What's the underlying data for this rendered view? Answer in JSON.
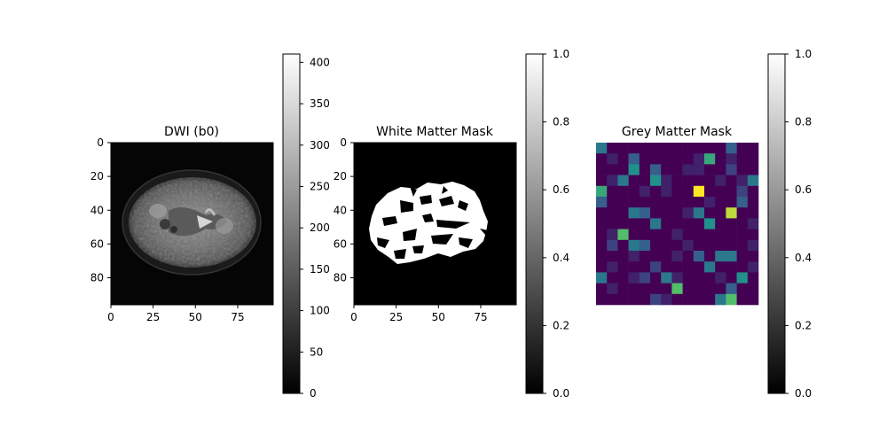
{
  "chart_data": [
    {
      "type": "heatmap",
      "title": "DWI (b0)",
      "xlabel": "",
      "ylabel": "",
      "x_range": [
        0,
        96
      ],
      "y_range": [
        0,
        96
      ],
      "x_ticks": [
        0,
        25,
        50,
        75
      ],
      "y_ticks": [
        0,
        20,
        40,
        60,
        80
      ],
      "colormap": "gray",
      "content": "axial brain slice (b0 diffusion image)",
      "colorbar": {
        "min": 0,
        "max": 410,
        "ticks": [
          0,
          50,
          100,
          150,
          200,
          250,
          300,
          350,
          400
        ]
      }
    },
    {
      "type": "heatmap",
      "title": "White Matter Mask",
      "xlabel": "",
      "ylabel": "",
      "x_range": [
        0,
        96
      ],
      "y_range": [
        0,
        96
      ],
      "x_ticks": [
        0,
        25,
        50,
        75
      ],
      "y_ticks": [
        0,
        20,
        40,
        60,
        80
      ],
      "colormap": "gray",
      "content": "binary white matter mask",
      "colorbar": {
        "min": 0.0,
        "max": 1.0,
        "ticks": [
          "0.0",
          "0.2",
          "0.4",
          "0.6",
          "0.8",
          "1.0"
        ]
      }
    },
    {
      "type": "heatmap",
      "title": "Grey Matter Mask",
      "xlabel": "",
      "ylabel": "",
      "axes_visible": false,
      "colormap": "viridis",
      "grid_size": [
        15,
        15
      ],
      "values": [
        [
          0.4,
          0.0,
          0.0,
          0.0,
          0.0,
          0.0,
          0.0,
          0.0,
          0.0,
          0.0,
          0.0,
          0.0,
          0.3,
          0.0,
          0.0
        ],
        [
          0.0,
          0.1,
          0.0,
          0.3,
          0.0,
          0.0,
          0.0,
          0.0,
          0.0,
          0.1,
          0.6,
          0.0,
          0.1,
          0.0,
          0.0
        ],
        [
          0.0,
          0.0,
          0.0,
          0.5,
          0.0,
          0.3,
          0.0,
          0.0,
          0.1,
          0.1,
          0.0,
          0.0,
          0.2,
          0.0,
          0.0
        ],
        [
          0.0,
          0.1,
          0.4,
          0.0,
          0.0,
          0.5,
          0.1,
          0.0,
          0.0,
          0.0,
          0.0,
          0.1,
          0.0,
          0.1,
          0.4
        ],
        [
          0.6,
          0.0,
          0.0,
          0.0,
          0.1,
          0.0,
          0.1,
          0.0,
          0.0,
          1.0,
          0.0,
          0.0,
          0.0,
          0.2,
          0.0
        ],
        [
          0.3,
          0.0,
          0.0,
          0.0,
          0.0,
          0.0,
          0.0,
          0.0,
          0.0,
          0.0,
          0.1,
          0.0,
          0.0,
          0.3,
          0.0
        ],
        [
          0.0,
          0.0,
          0.0,
          0.4,
          0.3,
          0.0,
          0.0,
          0.0,
          0.1,
          0.4,
          0.0,
          0.0,
          0.9,
          0.0,
          0.0
        ],
        [
          0.0,
          0.0,
          0.0,
          0.0,
          0.0,
          0.4,
          0.0,
          0.0,
          0.0,
          0.0,
          0.5,
          0.0,
          0.0,
          0.0,
          0.1
        ],
        [
          0.0,
          0.1,
          0.7,
          0.0,
          0.0,
          0.0,
          0.0,
          0.1,
          0.0,
          0.0,
          0.0,
          0.0,
          0.0,
          0.0,
          0.0
        ],
        [
          0.0,
          0.2,
          0.0,
          0.4,
          0.3,
          0.0,
          0.0,
          0.0,
          0.1,
          0.0,
          0.0,
          0.0,
          0.0,
          0.0,
          0.1
        ],
        [
          0.0,
          0.0,
          0.0,
          0.1,
          0.0,
          0.0,
          0.0,
          0.1,
          0.0,
          0.3,
          0.0,
          0.4,
          0.4,
          0.0,
          0.0
        ],
        [
          0.0,
          0.1,
          0.0,
          0.0,
          0.0,
          0.2,
          0.0,
          0.0,
          0.0,
          0.0,
          0.4,
          0.0,
          0.0,
          0.0,
          0.1
        ],
        [
          0.4,
          0.0,
          0.0,
          0.1,
          0.2,
          0.0,
          0.4,
          0.1,
          0.0,
          0.0,
          0.0,
          0.1,
          0.0,
          0.5,
          0.0
        ],
        [
          0.0,
          0.1,
          0.0,
          0.0,
          0.0,
          0.0,
          0.0,
          0.7,
          0.0,
          0.0,
          0.0,
          0.0,
          0.3,
          0.0,
          0.0
        ],
        [
          0.0,
          0.0,
          0.0,
          0.0,
          0.0,
          0.2,
          0.1,
          0.0,
          0.0,
          0.0,
          0.0,
          0.4,
          0.7,
          0.0,
          0.0
        ]
      ],
      "overrides": [
        [
          0,
          3,
          0.6
        ],
        [
          5,
          0,
          0.5
        ]
      ],
      "colorbar": {
        "min": 0.0,
        "max": 1.0,
        "ticks": [
          "0.0",
          "0.2",
          "0.4",
          "0.6",
          "0.8",
          "1.0"
        ]
      }
    }
  ]
}
